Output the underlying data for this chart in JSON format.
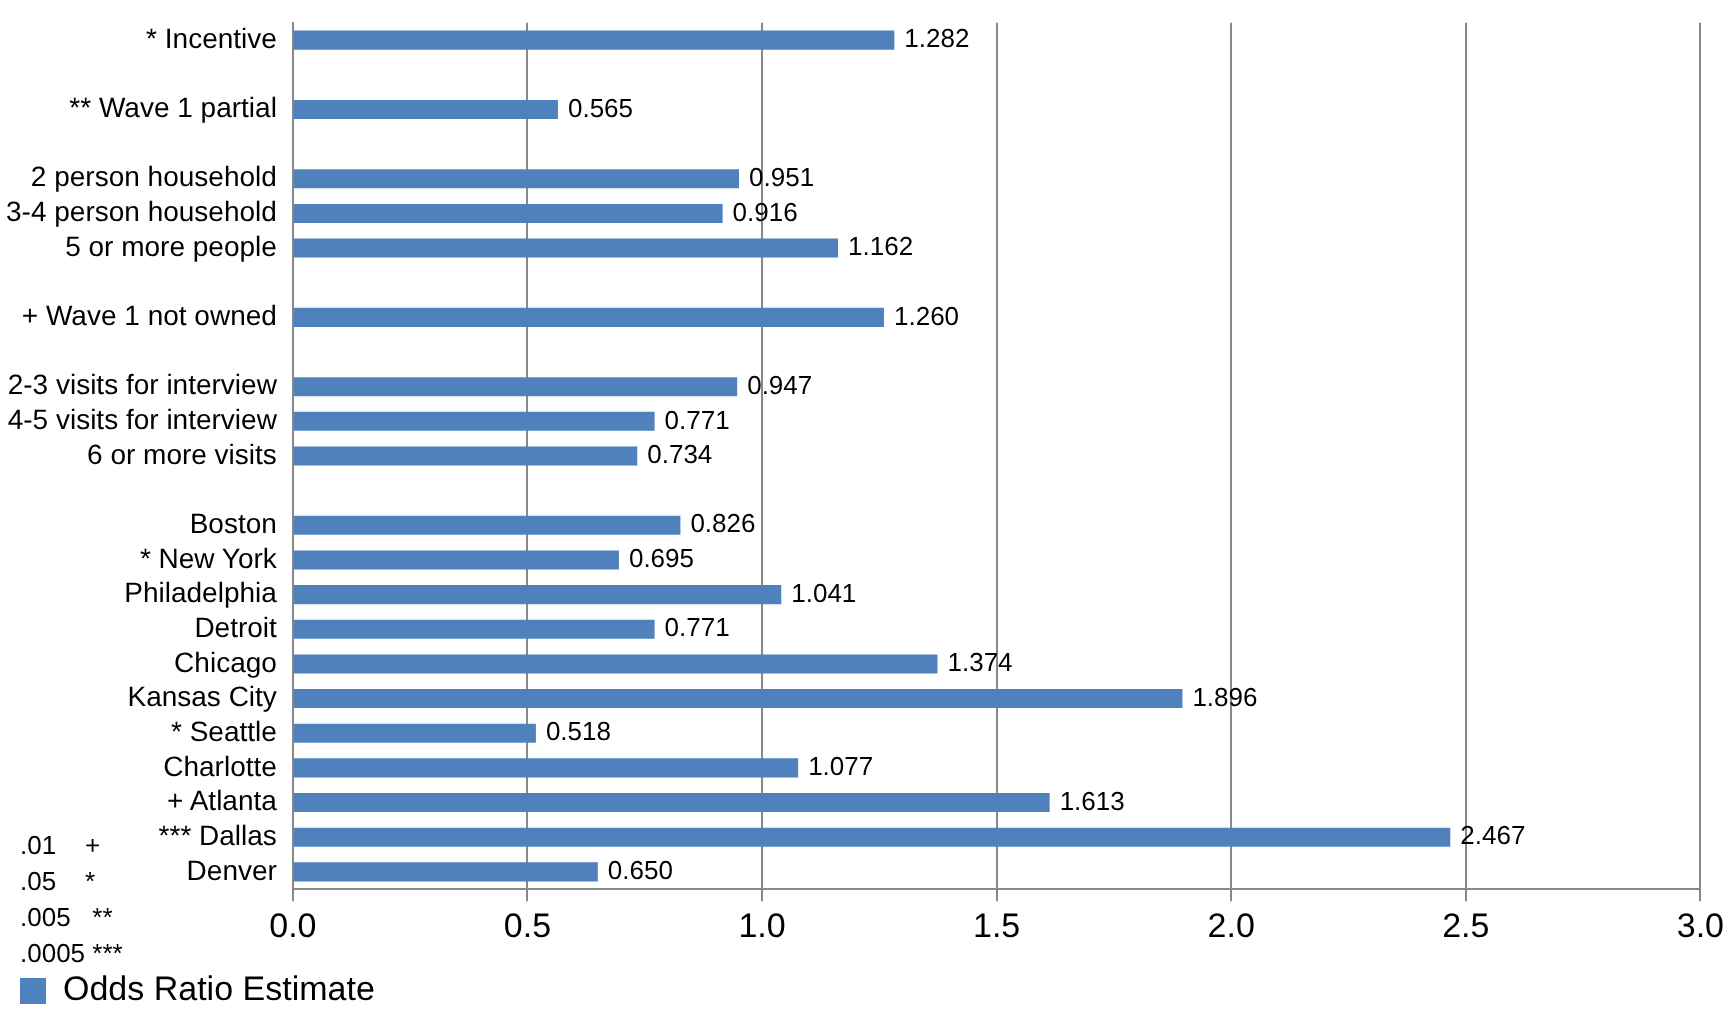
{
  "chart_data": {
    "type": "bar",
    "orientation": "horizontal",
    "categories": [
      "* Incentive",
      null,
      "** Wave 1 partial",
      null,
      "2 person household",
      "3-4 person household",
      "5 or more people",
      null,
      "+ Wave 1 not owned",
      null,
      "2-3 visits for interview",
      "4-5 visits for interview",
      "6 or more visits",
      null,
      "Boston",
      "* New York",
      "Philadelphia",
      "Detroit",
      "Chicago",
      "Kansas City",
      "* Seattle",
      "Charlotte",
      "+ Atlanta",
      "*** Dallas",
      "Denver"
    ],
    "series": [
      {
        "name": "Odds Ratio Estimate",
        "color": "#4f81bd",
        "values": [
          1.282,
          null,
          0.565,
          null,
          0.951,
          0.916,
          1.162,
          null,
          1.26,
          null,
          0.947,
          0.771,
          0.734,
          null,
          0.826,
          0.695,
          1.041,
          0.771,
          1.374,
          1.896,
          0.518,
          1.077,
          1.613,
          2.467,
          0.65
        ],
        "value_labels": [
          "1.282",
          null,
          "0.565",
          null,
          "0.951",
          "0.916",
          "1.162",
          null,
          "1.260",
          null,
          "0.947",
          "0.771",
          "0.734",
          null,
          "0.826",
          "0.695",
          "1.041",
          "0.771",
          "1.374",
          "1.896",
          "0.518",
          "1.077",
          "1.613",
          "2.467",
          "0.650"
        ]
      }
    ],
    "xlim": [
      0,
      3
    ],
    "xticks": [
      {
        "value": 0,
        "label": "0.0"
      },
      {
        "value": 0.5,
        "label": "0.5"
      },
      {
        "value": 1,
        "label": "1.0"
      },
      {
        "value": 1.5,
        "label": "1.5"
      },
      {
        "value": 2,
        "label": "2.0"
      },
      {
        "value": 2.5,
        "label": "2.5"
      },
      {
        "value": 3,
        "label": "3.0"
      }
    ],
    "grid": "x",
    "legend": "bottom left",
    "annotations": [
      ".01    +",
      ".05    *",
      ".005   **",
      ".0005 ***"
    ]
  }
}
